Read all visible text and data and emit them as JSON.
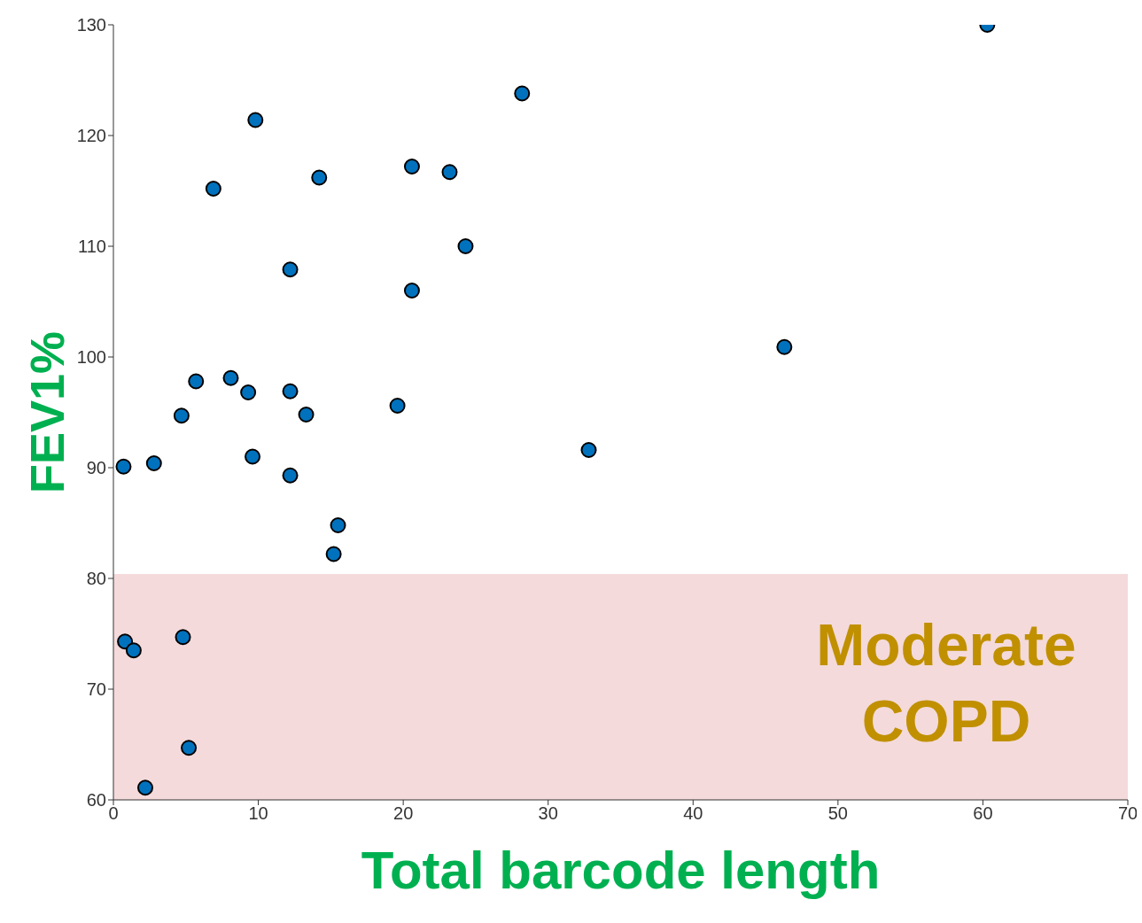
{
  "chart_data": {
    "type": "scatter",
    "xlabel": "Total barcode length",
    "ylabel": "FEV1%",
    "x": [
      60.3,
      28.2,
      9.8,
      6.9,
      14.2,
      20.6,
      23.2,
      24.3,
      12.2,
      20.6,
      46.3,
      5.7,
      8.1,
      9.3,
      12.2,
      4.7,
      13.3,
      19.6,
      0.7,
      2.8,
      9.6,
      12.2,
      32.8,
      15.5,
      15.2,
      0.8,
      1.4,
      4.8,
      5.2,
      2.2
    ],
    "series": [
      {
        "color": "#0072bd",
        "values": [
          130,
          123.8,
          121.4,
          115.2,
          116.2,
          117.2,
          116.7,
          110,
          107.9,
          106,
          100.9,
          97.8,
          98.1,
          96.8,
          96.9,
          94.7,
          94.8,
          95.6,
          90.1,
          90.4,
          91,
          89.3,
          91.6,
          84.8,
          82.2,
          74.3,
          73.5,
          74.7,
          64.7,
          61.1
        ]
      }
    ],
    "xlim": [
      0,
      70
    ],
    "xticks": [
      0,
      10,
      20,
      30,
      40,
      50,
      60,
      70
    ],
    "ylim": [
      60,
      130
    ],
    "yticks": [
      60,
      70,
      80,
      90,
      100,
      110,
      120,
      130
    ],
    "grid": false,
    "legend": false,
    "marker": "circle",
    "bands": [
      {
        "axis": "y",
        "from": 60,
        "to": 80.4,
        "label": "Moderate COPD",
        "color": "#f4dadb"
      }
    ]
  }
}
